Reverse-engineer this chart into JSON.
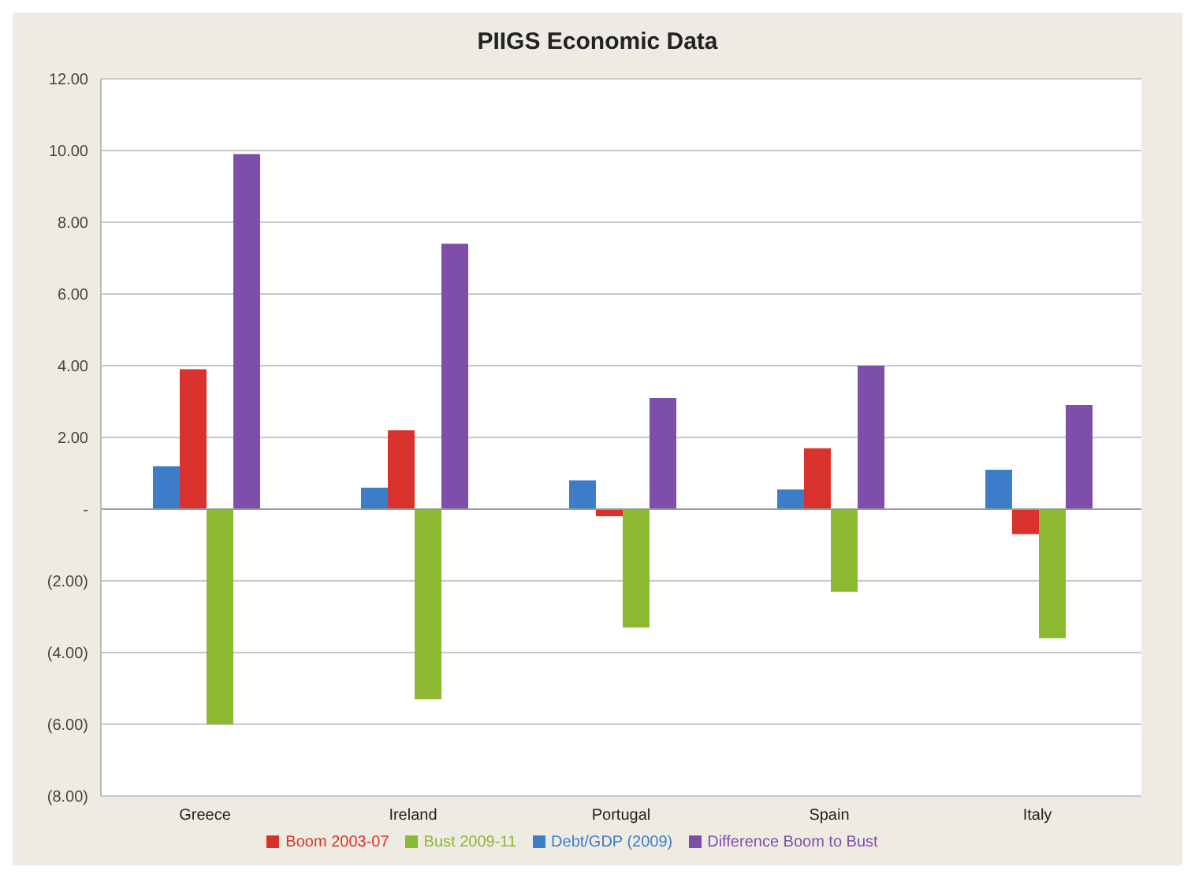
{
  "chart_data": {
    "type": "bar",
    "title": "PIIGS Economic Data",
    "categories": [
      "Greece",
      "Ireland",
      "Portugal",
      "Spain",
      "Italy"
    ],
    "series": [
      {
        "name": "Debt/GDP (2009)",
        "color": "#3d7cc9",
        "values": [
          1.2,
          0.6,
          0.8,
          0.55,
          1.1
        ]
      },
      {
        "name": "Boom 2003-07",
        "color": "#d9312b",
        "values": [
          3.9,
          2.2,
          -0.2,
          1.7,
          -0.7
        ]
      },
      {
        "name": "Bust 2009-11",
        "color": "#8db832",
        "values": [
          -6.0,
          -5.3,
          -3.3,
          -2.3,
          -3.6
        ]
      },
      {
        "name": "Difference Boom to Bust",
        "color": "#7d4fa8",
        "values": [
          9.9,
          7.4,
          3.1,
          4.0,
          2.9
        ]
      }
    ],
    "ylim": [
      -8,
      12
    ],
    "yticks": [
      {
        "value": -8,
        "label": "(8.00)"
      },
      {
        "value": -6,
        "label": "(6.00)"
      },
      {
        "value": -4,
        "label": "(4.00)"
      },
      {
        "value": -2,
        "label": "(2.00)"
      },
      {
        "value": 0,
        "label": "-"
      },
      {
        "value": 2,
        "label": "2.00"
      },
      {
        "value": 4,
        "label": "4.00"
      },
      {
        "value": 6,
        "label": "6.00"
      },
      {
        "value": 8,
        "label": "8.00"
      },
      {
        "value": 10,
        "label": "10.00"
      },
      {
        "value": 12,
        "label": "12.00"
      }
    ],
    "grid": "y",
    "legend": "bottom"
  }
}
